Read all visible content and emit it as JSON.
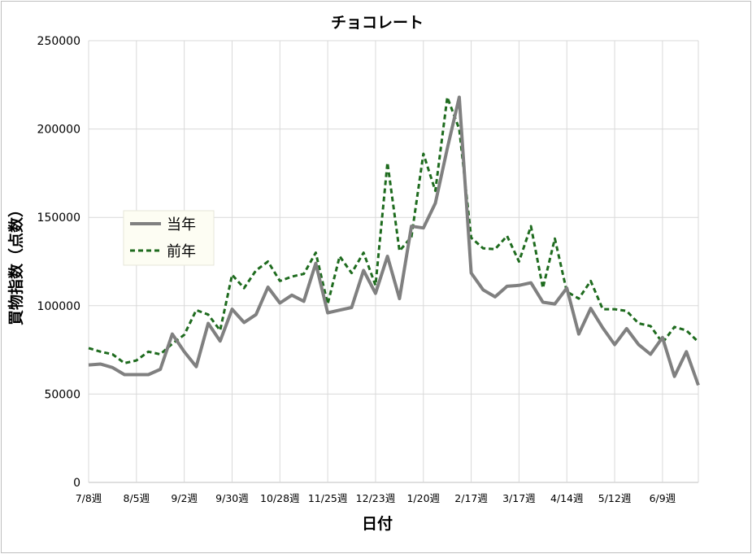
{
  "chart_data": {
    "type": "line",
    "title": "チョコレート",
    "xlabel": "日付",
    "ylabel": "買物指数（点数）",
    "ylim": [
      0,
      250000
    ],
    "yticks": [
      0,
      50000,
      100000,
      150000,
      200000,
      250000
    ],
    "ytick_labels": [
      "0",
      "50000",
      "100000",
      "150000",
      "200000",
      "250000"
    ],
    "xtick_labels": [
      "7/8週",
      "8/5週",
      "9/2週",
      "9/30週",
      "10/28週",
      "11/25週",
      "12/23週",
      "1/20週",
      "2/17週",
      "3/17週",
      "4/14週",
      "5/12週",
      "6/9週"
    ],
    "grid": true,
    "legend_position": "left-middle",
    "series": [
      {
        "name": "当年",
        "color": "#808080",
        "style": "solid",
        "values": [
          66500,
          67000,
          65000,
          61000,
          61000,
          61000,
          64000,
          84000,
          74000,
          65500,
          90000,
          80000,
          98000,
          90500,
          95000,
          110500,
          101500,
          106000,
          102500,
          124000,
          96000,
          97500,
          99000,
          120000,
          107000,
          128000,
          104000,
          145000,
          144000,
          158000,
          189000,
          218000,
          118500,
          109000,
          105000,
          111000,
          111500,
          113000,
          102000,
          101000,
          110000,
          84000,
          98500,
          87500,
          78000,
          87000,
          78000,
          72500,
          82000,
          60000,
          74000,
          55000
        ]
      },
      {
        "name": "前年",
        "color": "#1e6b1e",
        "style": "dashed",
        "values": [
          76000,
          74000,
          72500,
          67500,
          69000,
          74000,
          72500,
          78500,
          83500,
          97500,
          95000,
          86000,
          117500,
          110000,
          120000,
          125000,
          114000,
          116500,
          118000,
          130000,
          101000,
          128000,
          118500,
          130000,
          111500,
          181000,
          131000,
          139000,
          186000,
          165000,
          218000,
          200000,
          138500,
          132500,
          132000,
          139500,
          125000,
          145000,
          110000,
          138000,
          108000,
          104000,
          114000,
          98000,
          98000,
          97000,
          90000,
          88500,
          79000,
          88000,
          86000,
          79500
        ]
      }
    ]
  }
}
